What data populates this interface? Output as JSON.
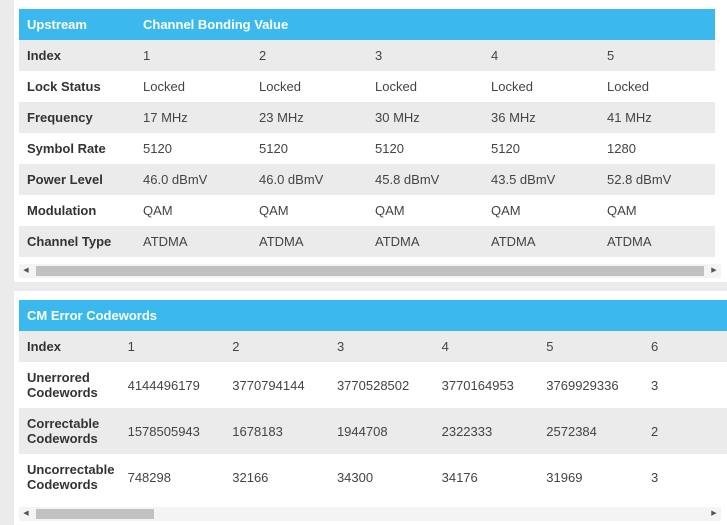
{
  "upstream": {
    "header": [
      "Upstream",
      "Channel Bonding Value"
    ],
    "rows": [
      {
        "label": "Index",
        "values": [
          "1",
          "2",
          "3",
          "4",
          "5"
        ]
      },
      {
        "label": "Lock Status",
        "values": [
          "Locked",
          "Locked",
          "Locked",
          "Locked",
          "Locked"
        ]
      },
      {
        "label": "Frequency",
        "values": [
          "17 MHz",
          "23 MHz",
          "30 MHz",
          "36 MHz",
          "41 MHz"
        ]
      },
      {
        "label": "Symbol Rate",
        "values": [
          "5120",
          "5120",
          "5120",
          "5120",
          "1280"
        ]
      },
      {
        "label": "Power Level",
        "values": [
          "46.0 dBmV",
          "46.0 dBmV",
          "45.8 dBmV",
          "43.5 dBmV",
          "52.8 dBmV"
        ]
      },
      {
        "label": "Modulation",
        "values": [
          "QAM",
          "QAM",
          "QAM",
          "QAM",
          "QAM"
        ]
      },
      {
        "label": "Channel Type",
        "values": [
          "ATDMA",
          "ATDMA",
          "ATDMA",
          "ATDMA",
          "ATDMA"
        ]
      }
    ]
  },
  "cm_errors": {
    "header": "CM Error Codewords",
    "rows": [
      {
        "label": "Index",
        "values": [
          "1",
          "2",
          "3",
          "4",
          "5",
          "6"
        ]
      },
      {
        "label": "Unerrored Codewords",
        "values": [
          "4144496179",
          "3770794144",
          "3770528502",
          "3770164953",
          "3769929336",
          "3"
        ]
      },
      {
        "label": "Correctable Codewords",
        "values": [
          "1578505943",
          "1678183",
          "1944708",
          "2322333",
          "2572384",
          "2"
        ]
      },
      {
        "label": "Uncorrectable Codewords",
        "values": [
          "748298",
          "32166",
          "34300",
          "34176",
          "31969",
          "3"
        ]
      }
    ]
  },
  "scrollbar": {
    "left_arrow": "◀",
    "right_arrow": "▶"
  }
}
